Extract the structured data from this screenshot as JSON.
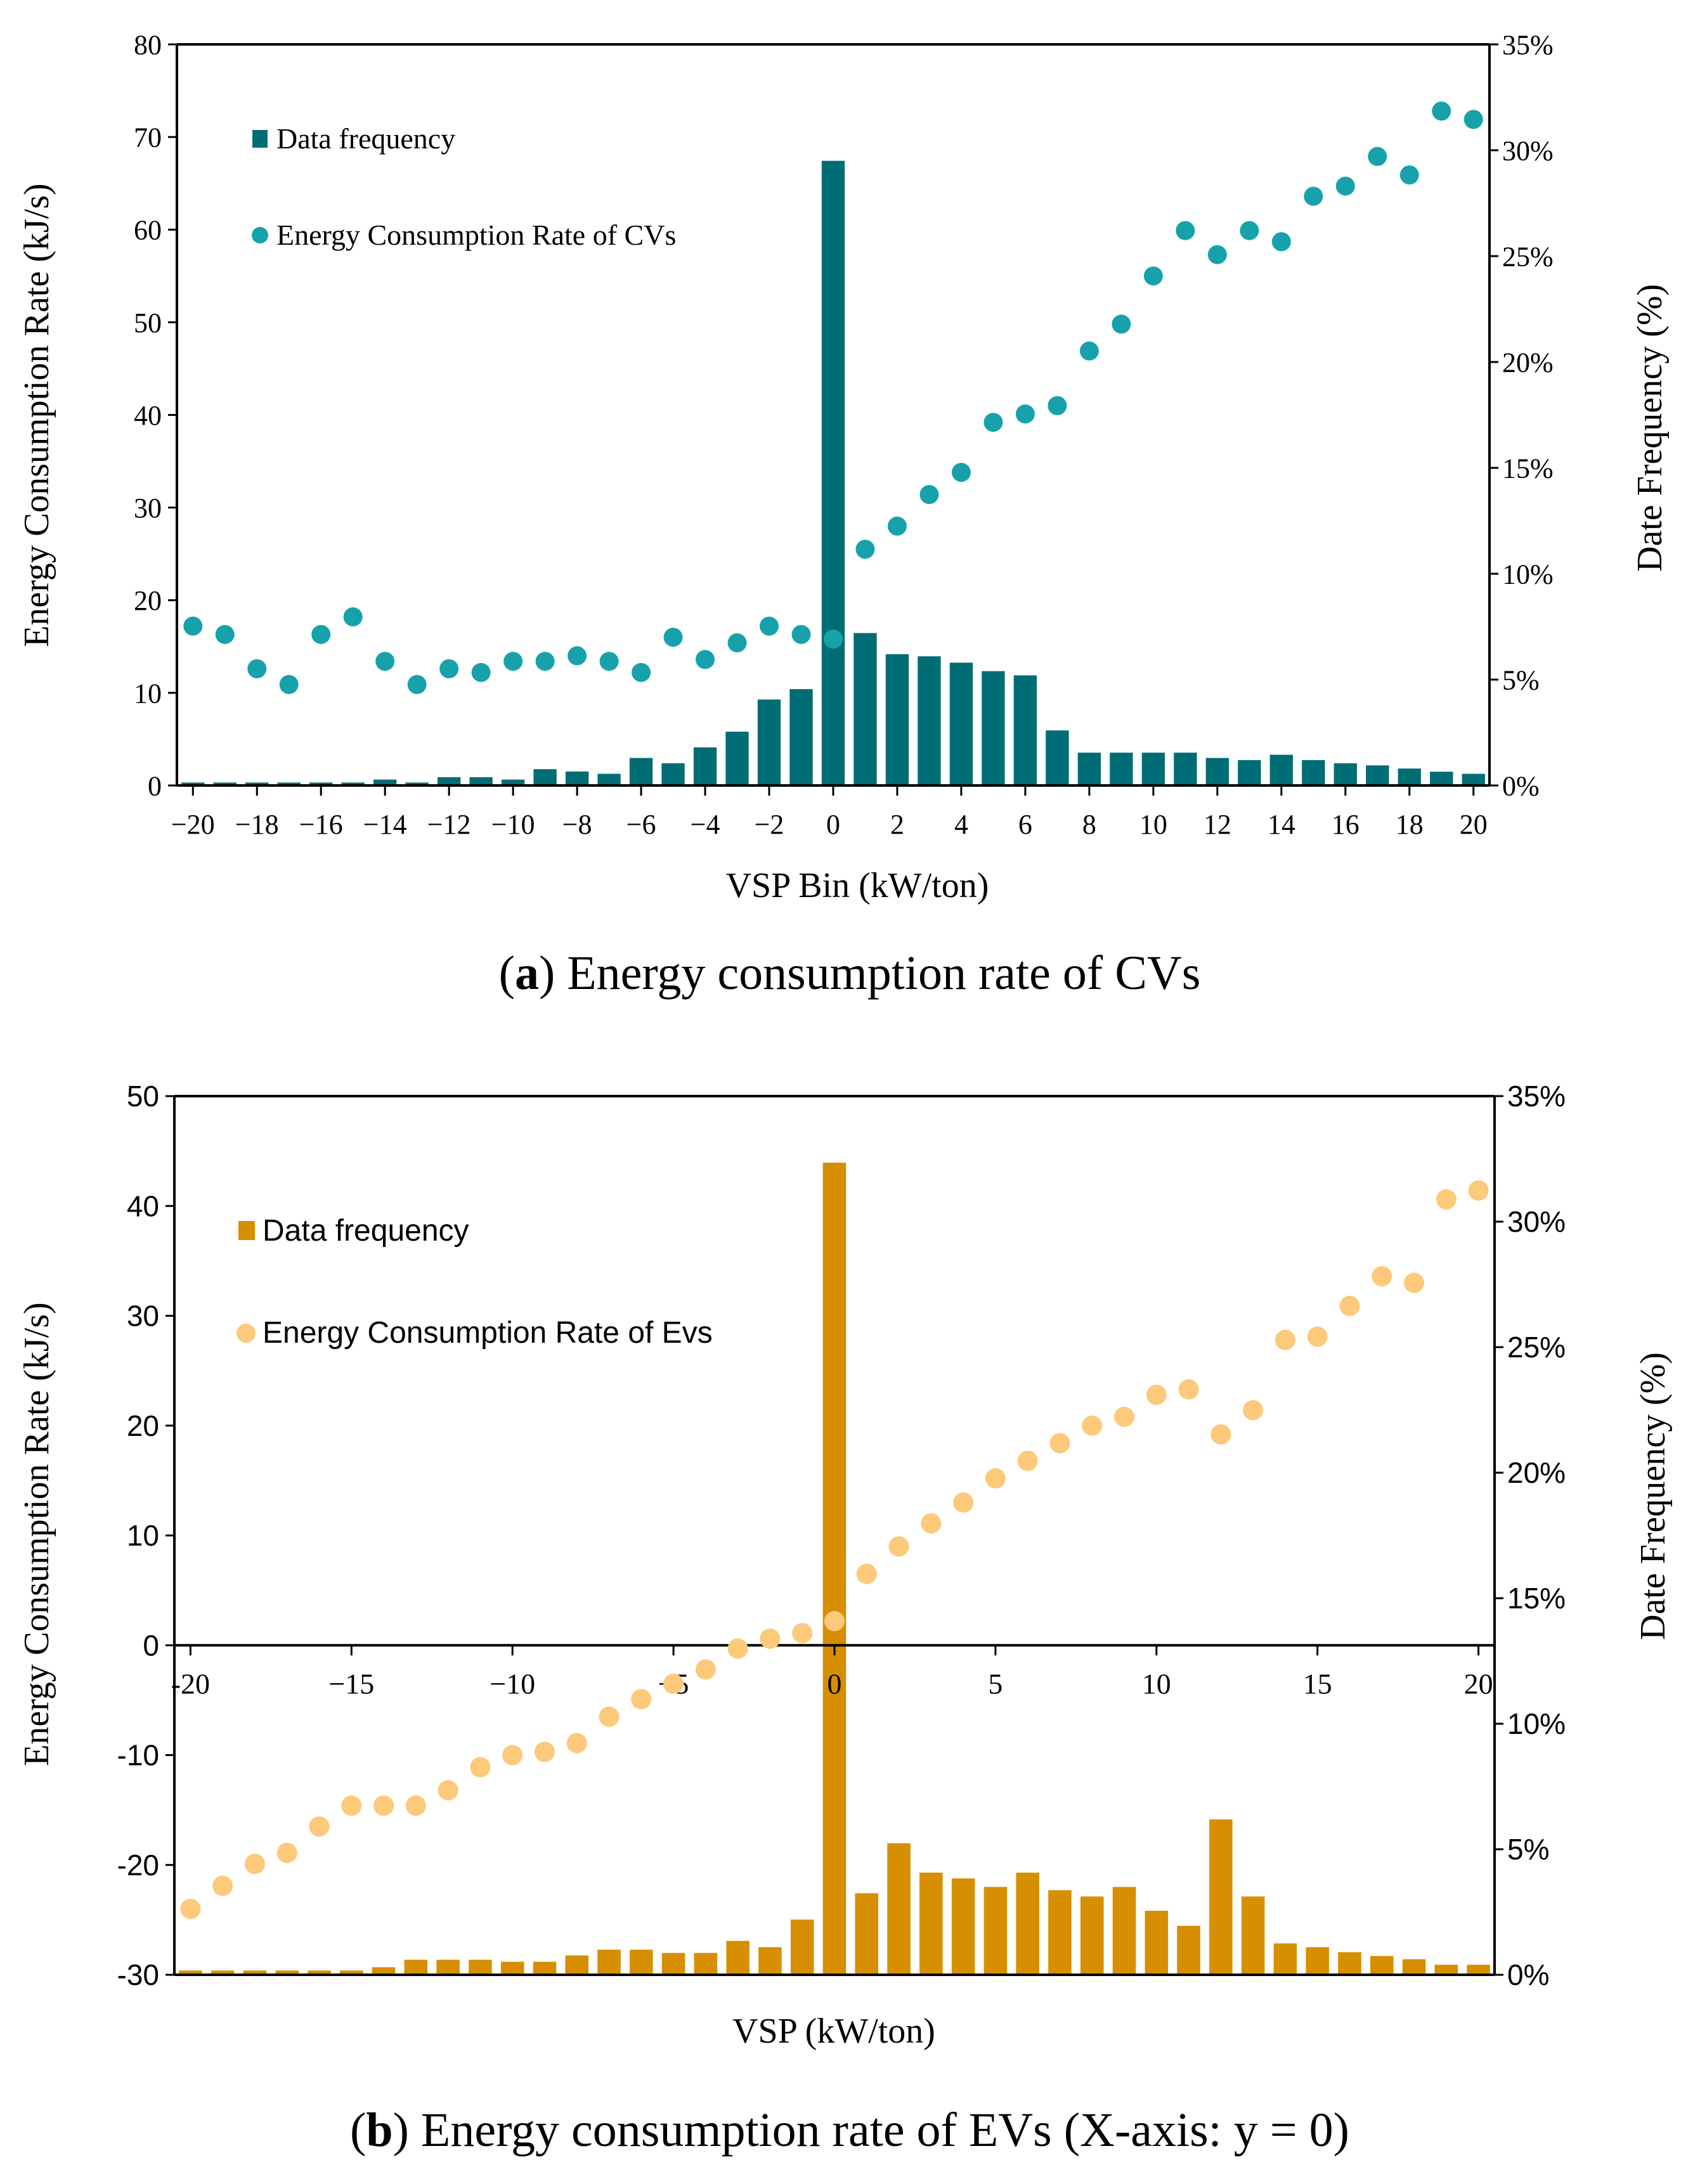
{
  "chart_data": [
    {
      "type": "bar+scatter",
      "caption_label": "a",
      "caption_text": " Energy consumption rate of CVs",
      "xlabel": "VSP Bin (kW/ton)",
      "ylabel_left": "Energy Consumption Rate    (kJ/s)",
      "ylabel_right": "Date Frequency (%)",
      "ylim_left": [
        0,
        80
      ],
      "ylim_right": [
        0,
        35
      ],
      "xlim": [
        -20,
        20
      ],
      "x_ticks": [
        "−20",
        "−18",
        "−16",
        "−14",
        "−12",
        "−10",
        "−8",
        "−6",
        "−4",
        "−2",
        "0",
        "2",
        "4",
        "6",
        "8",
        "10",
        "12",
        "14",
        "16",
        "18",
        "20"
      ],
      "y_left_ticks": [
        "0",
        "10",
        "20",
        "30",
        "40",
        "50",
        "60",
        "70",
        "80"
      ],
      "y_right_ticks": [
        "0%",
        "5%",
        "10%",
        "15%",
        "20%",
        "25%",
        "30%",
        "35%"
      ],
      "grid": false,
      "legend_placement": "top-left",
      "x": [
        -20,
        -19,
        -18,
        -17,
        -16,
        -15,
        -14,
        -13,
        -12,
        -11,
        -10,
        -9,
        -8,
        -7,
        -6,
        -5,
        -4,
        -3,
        -2,
        -1,
        0,
        1,
        2,
        3,
        4,
        5,
        6,
        7,
        8,
        9,
        10,
        11,
        12,
        13,
        14,
        15,
        16,
        17,
        18,
        19,
        20
      ],
      "series": [
        {
          "name": "Data frequency",
          "type": "bar",
          "axis": "right",
          "color": "#006d75",
          "values": [
            0.14,
            0.14,
            0.14,
            0.14,
            0.14,
            0.14,
            0.28,
            0.14,
            0.39,
            0.39,
            0.28,
            0.77,
            0.66,
            0.55,
            1.3,
            1.05,
            1.8,
            2.54,
            4.06,
            4.55,
            29.5,
            7.2,
            6.2,
            6.1,
            5.8,
            5.4,
            5.2,
            2.6,
            1.55,
            1.55,
            1.55,
            1.55,
            1.3,
            1.2,
            1.45,
            1.2,
            1.05,
            0.95,
            0.8,
            0.65,
            0.55
          ]
        },
        {
          "name": "Energy Consumption Rate of CVs",
          "type": "scatter",
          "axis": "left",
          "color": "#17a2ab",
          "values": [
            17.2,
            16.3,
            12.6,
            10.9,
            16.3,
            18.2,
            13.4,
            10.9,
            12.6,
            12.2,
            13.4,
            13.4,
            14.0,
            13.4,
            12.2,
            16.0,
            13.6,
            15.4,
            17.2,
            16.3,
            15.8,
            25.5,
            28.0,
            31.4,
            33.8,
            39.2,
            40.1,
            41.0,
            46.9,
            49.8,
            55.0,
            59.9,
            57.3,
            59.9,
            58.7,
            63.6,
            64.7,
            67.9,
            65.9,
            72.8,
            71.9
          ]
        }
      ]
    },
    {
      "type": "bar+scatter",
      "caption_label": "b",
      "caption_text": " Energy consumption rate of EVs (X-axis: y = 0)",
      "xlabel": "VSP (kW/ton)",
      "ylabel_left": "Energy Consumption Rate    (kJ/s)",
      "ylabel_right": "Date Frequency (%)",
      "ylim_left": [
        -30,
        50
      ],
      "ylim_right": [
        0,
        35
      ],
      "xlim": [
        -20,
        20
      ],
      "x_ticks": [
        "-20",
        "−15",
        "−10",
        "−5",
        "0",
        "5",
        "10",
        "15",
        "20"
      ],
      "y_left_ticks": [
        "-30",
        "-20",
        "-10",
        "0",
        "10",
        "20",
        "30",
        "40",
        "50"
      ],
      "y_right_ticks": [
        "0%",
        "5%",
        "10%",
        "15%",
        "20%",
        "25%",
        "30%",
        "35%"
      ],
      "grid": false,
      "legend_placement": "top-left",
      "x": [
        -20,
        -19,
        -18,
        -17,
        -16,
        -15,
        -14,
        -13,
        -12,
        -11,
        -10,
        -9,
        -8,
        -7,
        -6,
        -5,
        -4,
        -3,
        -2,
        -1,
        0,
        1,
        2,
        3,
        4,
        5,
        6,
        7,
        8,
        9,
        10,
        11,
        12,
        13,
        14,
        15,
        16,
        17,
        18,
        19,
        20
      ],
      "series": [
        {
          "name": "Data frequency",
          "type": "bar",
          "axis": "right",
          "color": "#d68f00",
          "values": [
            0.17,
            0.17,
            0.17,
            0.17,
            0.17,
            0.17,
            0.3,
            0.6,
            0.6,
            0.6,
            0.52,
            0.52,
            0.77,
            1.0,
            1.0,
            0.87,
            0.87,
            1.35,
            1.1,
            2.2,
            32.35,
            3.25,
            5.24,
            4.07,
            3.84,
            3.5,
            4.07,
            3.37,
            3.12,
            3.5,
            2.55,
            1.95,
            6.19,
            3.12,
            1.25,
            1.1,
            0.9,
            0.75,
            0.62,
            0.4,
            0.4
          ]
        },
        {
          "name": "Energy Consumption Rate of Evs",
          "type": "scatter",
          "axis": "left",
          "color": "#fdc97a",
          "values": [
            -24.0,
            -21.9,
            -19.9,
            -18.9,
            -16.5,
            -14.6,
            -14.6,
            -14.6,
            -13.2,
            -11.1,
            -10.0,
            -9.7,
            -8.9,
            -6.5,
            -4.9,
            -3.5,
            -2.2,
            -0.3,
            0.6,
            1.1,
            2.2,
            6.5,
            9.0,
            11.1,
            13.0,
            15.2,
            16.8,
            18.4,
            20.0,
            20.8,
            22.8,
            23.3,
            19.2,
            21.4,
            27.8,
            28.1,
            30.9,
            33.6,
            33.0,
            40.6,
            41.4
          ]
        }
      ]
    }
  ]
}
